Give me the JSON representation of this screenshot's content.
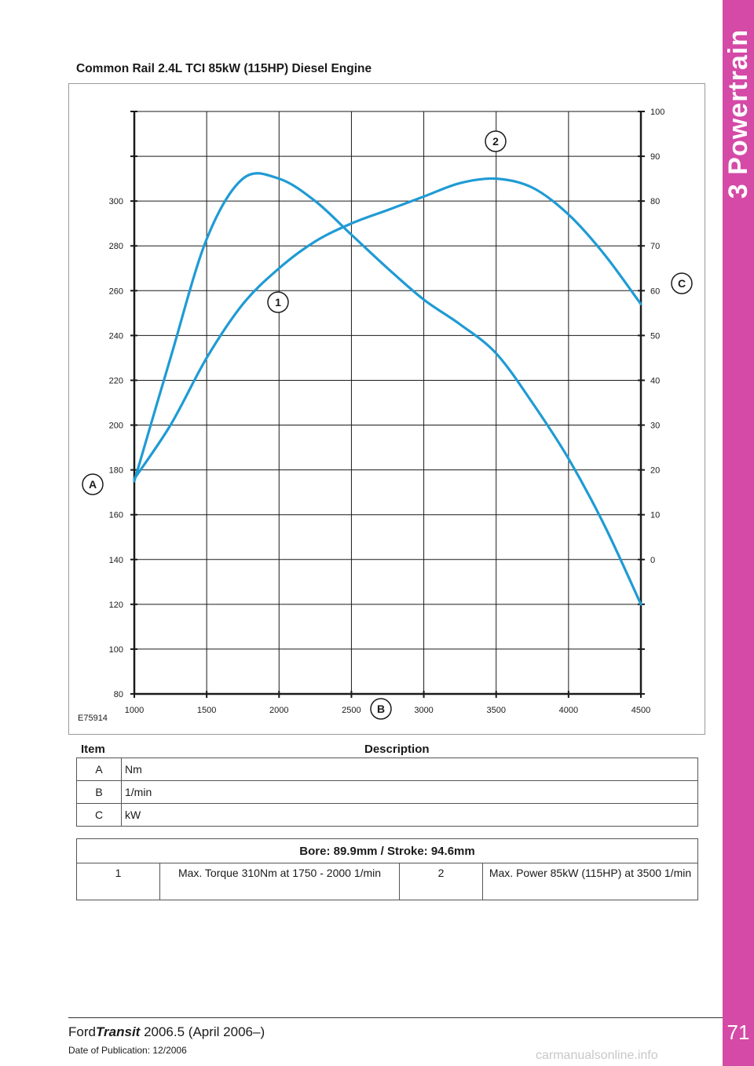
{
  "section": {
    "title": "3 Powertrain",
    "page_number": "71"
  },
  "chart_title": "Common Rail 2.4L TCI 85kW (115HP) Diesel Engine",
  "figure_id": "E75914",
  "chart_data": {
    "type": "line",
    "title": "Common Rail 2.4L TCI 85kW (115HP) Diesel Engine",
    "x": [
      1000,
      1250,
      1500,
      1750,
      2000,
      2250,
      2500,
      2750,
      3000,
      3250,
      3500,
      3750,
      4000,
      4250,
      4500
    ],
    "x_ticks": [
      "1000",
      "1500",
      "2000",
      "2500",
      "3000",
      "3500",
      "4000",
      "4500"
    ],
    "xlim": [
      1000,
      4500
    ],
    "left_axis": {
      "label": "A",
      "unit": "Nm",
      "ylim": [
        80,
        340
      ],
      "ticks": [
        "80",
        "100",
        "120",
        "140",
        "160",
        "180",
        "200",
        "220",
        "240",
        "260",
        "280",
        "300"
      ]
    },
    "right_axis": {
      "label": "C",
      "unit": "kW",
      "ylim": [
        -30,
        100
      ],
      "ticks": [
        "0",
        "10",
        "20",
        "30",
        "40",
        "50",
        "60",
        "70",
        "80",
        "90",
        "100"
      ]
    },
    "x_axis_label": "B",
    "series": [
      {
        "name": "Torque",
        "marker": "1",
        "axis": "left",
        "values": [
          175,
          230,
          283,
          310,
          310,
          300,
          285,
          270,
          256,
          245,
          232,
          210,
          185,
          155,
          120
        ]
      },
      {
        "name": "Power",
        "marker": "2",
        "axis": "right",
        "values": [
          18,
          30,
          45,
          57,
          65,
          71,
          75,
          78,
          81,
          84,
          85,
          83,
          77,
          68,
          57
        ]
      }
    ],
    "line_color": "#1f9bd4"
  },
  "legend_table": {
    "headers": {
      "item": "Item",
      "description": "Description"
    },
    "rows": [
      {
        "item": "A",
        "description": "Nm"
      },
      {
        "item": "B",
        "description": "1/min"
      },
      {
        "item": "C",
        "description": "kW"
      }
    ]
  },
  "spec_table": {
    "header": "Bore: 89.9mm / Stroke: 94.6mm",
    "cells": [
      {
        "num": "1",
        "text": "Max. Torque 310Nm at 1750 - 2000 1/min"
      },
      {
        "num": "2",
        "text": "Max. Power 85kW (115HP) at 3500 1/min"
      }
    ]
  },
  "footer": {
    "brand": "Ford",
    "model": "Transit",
    "edition": " 2006.5 (April 2006–)",
    "publication": "Date of Publication: 12/2006"
  },
  "watermark": "carmanualsonline.info",
  "colors": {
    "accent": "#d44aa6",
    "curve": "#1f9bd4"
  }
}
